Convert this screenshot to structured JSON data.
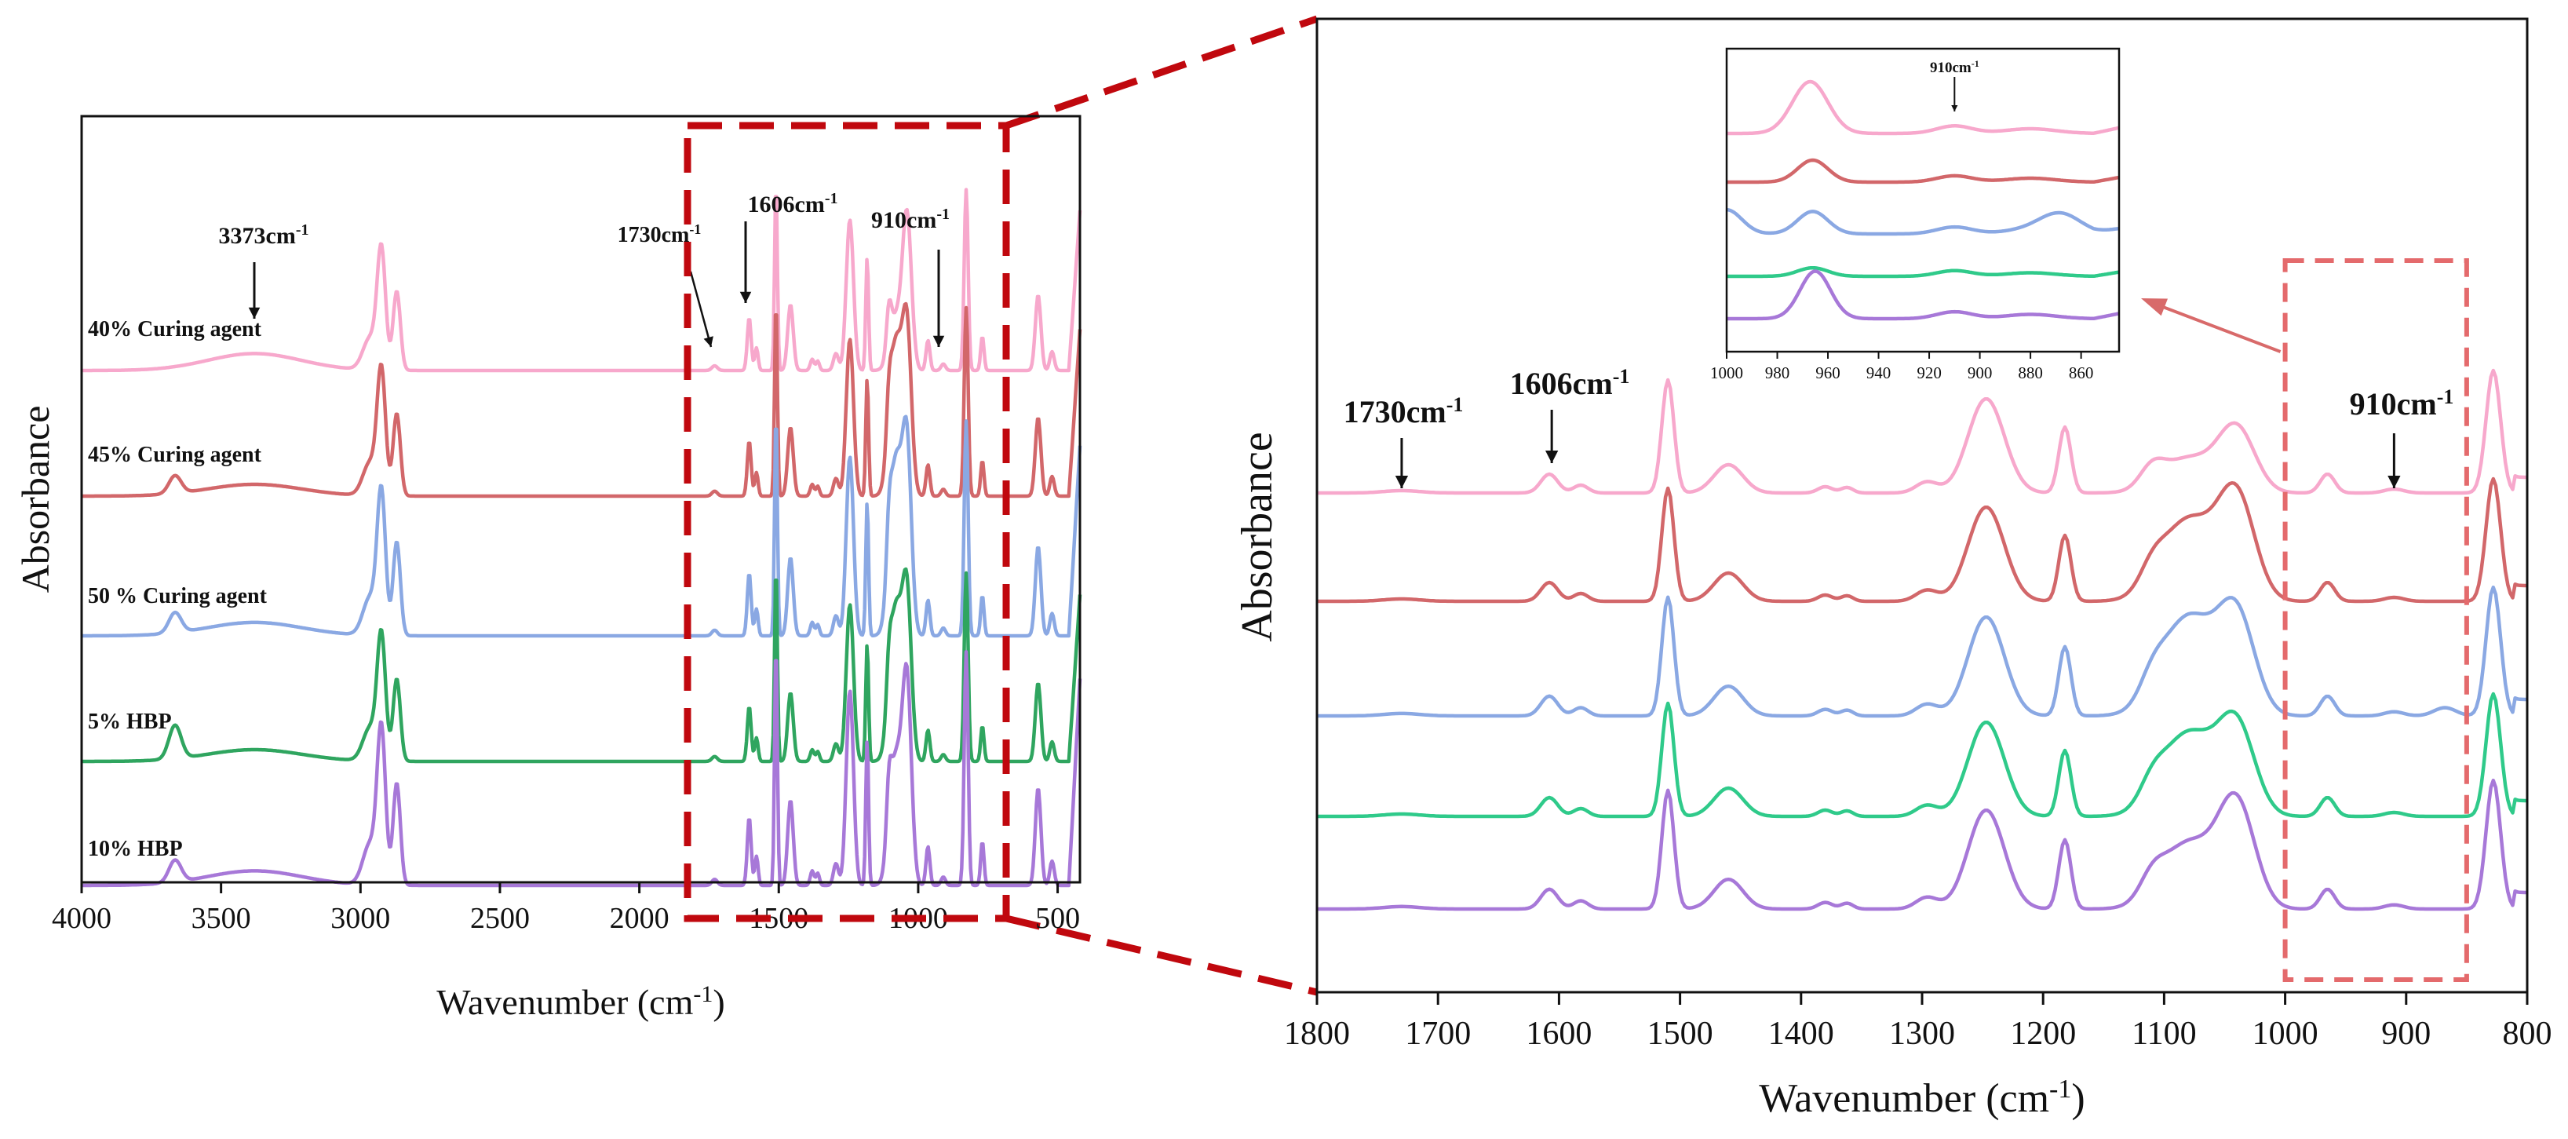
{
  "colors": {
    "pink": "#f7a8cc",
    "red": "#d2676a",
    "blue": "#8aa8e3",
    "green": "#2fa55f",
    "teal": "#2fca8a",
    "purple": "#a778d8",
    "frame": "#111111",
    "zoom_box": "#c0080e",
    "dashed_box": "#e46a6c",
    "arrow": "#d86a6a"
  },
  "chart_data": [
    {
      "type": "line",
      "id": "full",
      "xlabel": "Wavenumber (cm",
      "xlabel_sup": "-1",
      "xlabel_end": ")",
      "ylabel": "Absorbance",
      "xlim": [
        4000,
        420
      ],
      "xticks": [
        4000,
        3500,
        3000,
        2500,
        2000,
        1500,
        1000,
        500
      ],
      "series": [
        {
          "name": "40% Curing agent",
          "color_key": "pink"
        },
        {
          "name": "45% Curing agent",
          "color_key": "red"
        },
        {
          "name": "50 % Curing agent",
          "color_key": "blue"
        },
        {
          "name": "5% HBP",
          "color_key": "green"
        },
        {
          "name": "10% HBP",
          "color_key": "purple"
        }
      ],
      "annotations": [
        {
          "text": "3373cm",
          "sup": "-1",
          "x": 3373
        },
        {
          "text": "1730cm",
          "sup": "-1",
          "x": 1730
        },
        {
          "text": "1606cm",
          "sup": "-1",
          "x": 1606
        },
        {
          "text": "910cm",
          "sup": "-1",
          "x": 910
        }
      ],
      "zoom_region": [
        1800,
        800
      ]
    },
    {
      "type": "line",
      "id": "zoom",
      "xlabel": "Wavenumber (cm",
      "xlabel_sup": "-1",
      "xlabel_end": ")",
      "ylabel": "Absorbance",
      "xlim": [
        1800,
        800
      ],
      "xticks": [
        1800,
        1700,
        1600,
        1500,
        1400,
        1300,
        1200,
        1100,
        1000,
        900,
        800
      ],
      "series_colors": [
        "pink",
        "red",
        "blue",
        "teal",
        "purple"
      ],
      "annotations": [
        {
          "text": "1730cm",
          "sup": "-1",
          "x": 1730
        },
        {
          "text": "1606cm",
          "sup": "-1",
          "x": 1606
        },
        {
          "text": "910cm",
          "sup": "-1",
          "x": 910
        }
      ],
      "highlight_region": [
        1000,
        850
      ]
    },
    {
      "type": "line",
      "id": "inset",
      "xlim": [
        1000,
        845
      ],
      "xticks": [
        1000,
        980,
        960,
        940,
        920,
        900,
        880,
        860
      ],
      "series_colors": [
        "pink",
        "red",
        "blue",
        "teal",
        "purple"
      ],
      "annotations": [
        {
          "text": "910cm",
          "sup": "-1",
          "x": 910
        }
      ]
    }
  ]
}
